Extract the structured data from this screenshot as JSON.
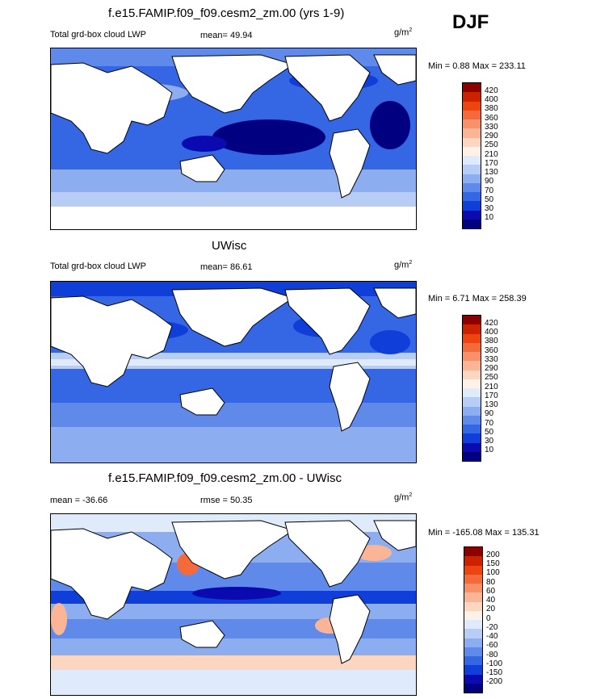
{
  "season": "DJF",
  "panels": [
    {
      "title": "f.e15.FAMIP.f09_f09.cesm2_zm.00 (yrs 1-9)",
      "left_label": "Total grd-box cloud LWP",
      "stat_label": "mean=  49.94",
      "units_base": "g/m",
      "units_exp": "2",
      "minmax": "Min =   0.88 Max = 233.11",
      "levels": [
        "420",
        "400",
        "380",
        "360",
        "330",
        "290",
        "250",
        "210",
        "170",
        "130",
        "90",
        "70",
        "50",
        "30",
        "10"
      ],
      "colors": [
        "#8b0000",
        "#cc2200",
        "#ee4410",
        "#f56a3a",
        "#f8906a",
        "#fab596",
        "#fcd6c0",
        "#fff1e6",
        "#dfeafb",
        "#b7cdf6",
        "#8cadf0",
        "#5f8aea",
        "#3566e3",
        "#0f3fd8",
        "#0a0ab0",
        "#000080"
      ]
    },
    {
      "title": "UWisc",
      "left_label": "Total grd-box cloud LWP",
      "stat_label": "mean=  86.61",
      "units_base": "g/m",
      "units_exp": "2",
      "minmax": "Min =   6.71 Max = 258.39",
      "levels": [
        "420",
        "400",
        "380",
        "360",
        "330",
        "290",
        "250",
        "210",
        "170",
        "130",
        "90",
        "70",
        "50",
        "30",
        "10"
      ],
      "colors": [
        "#8b0000",
        "#cc2200",
        "#ee4410",
        "#f56a3a",
        "#f8906a",
        "#fab596",
        "#fcd6c0",
        "#fff1e6",
        "#dfeafb",
        "#b7cdf6",
        "#8cadf0",
        "#5f8aea",
        "#3566e3",
        "#0f3fd8",
        "#0a0ab0",
        "#000080"
      ]
    },
    {
      "title": "f.e15.FAMIP.f09_f09.cesm2_zm.00 - UWisc",
      "left_label": "mean = -36.66",
      "stat_label": "rmse =  50.35",
      "units_base": "g/m",
      "units_exp": "2",
      "minmax": "Min = -165.08 Max = 135.31",
      "levels": [
        "200",
        "150",
        "100",
        "80",
        "60",
        "40",
        "20",
        "0",
        "-20",
        "-40",
        "-60",
        "-80",
        "-100",
        "-150",
        "-200"
      ],
      "colors": [
        "#8b0000",
        "#cc2200",
        "#ee4410",
        "#f56a3a",
        "#f8906a",
        "#fab596",
        "#fcd6c0",
        "#fff1e6",
        "#dfeafb",
        "#b7cdf6",
        "#8cadf0",
        "#5f8aea",
        "#3566e3",
        "#0f3fd8",
        "#0a0ab0",
        "#000080"
      ]
    }
  ],
  "chart_data": [
    {
      "type": "heatmap",
      "title": "f.e15.FAMIP.f09_f09.cesm2_zm.00 (yrs 1-9)",
      "variable": "Total grd-box cloud LWP",
      "units": "g/m2",
      "mean": 49.94,
      "min": 0.88,
      "max": 233.11,
      "contour_levels": [
        10,
        30,
        50,
        70,
        90,
        130,
        170,
        210,
        250,
        290,
        330,
        360,
        380,
        400,
        420
      ]
    },
    {
      "type": "heatmap",
      "title": "UWisc",
      "variable": "Total grd-box cloud LWP",
      "units": "g/m2",
      "mean": 86.61,
      "min": 6.71,
      "max": 258.39,
      "contour_levels": [
        10,
        30,
        50,
        70,
        90,
        130,
        170,
        210,
        250,
        290,
        330,
        360,
        380,
        400,
        420
      ]
    },
    {
      "type": "heatmap",
      "title": "f.e15.FAMIP.f09_f09.cesm2_zm.00 - UWisc",
      "units": "g/m2",
      "mean": -36.66,
      "rmse": 50.35,
      "min": -165.08,
      "max": 135.31,
      "contour_levels": [
        -200,
        -150,
        -100,
        -80,
        -60,
        -40,
        -20,
        0,
        20,
        40,
        60,
        80,
        100,
        150,
        200
      ]
    }
  ]
}
